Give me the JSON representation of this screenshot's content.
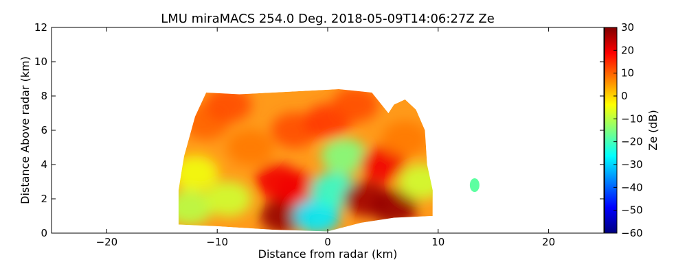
{
  "chart_data": {
    "type": "heatmap",
    "title": "LMU miraMACS 254.0 Deg. 2018-05-09T14:06:27Z  Ze",
    "xlabel": "Distance from radar (km)",
    "ylabel": "Distance Above radar  (km)",
    "xlim": [
      -25,
      25
    ],
    "ylim": [
      0,
      12
    ],
    "xticks": [
      -20,
      -10,
      0,
      10,
      20
    ],
    "xtick_labels": [
      "−20",
      "−10",
      "0",
      "10",
      "20"
    ],
    "yticks": [
      0,
      2,
      4,
      6,
      8,
      10,
      12
    ],
    "ytick_labels": [
      "0",
      "2",
      "4",
      "6",
      "8",
      "10",
      "12"
    ],
    "grid": false,
    "colorbar": {
      "label": "Ze (dB)",
      "range": [
        -60,
        30
      ],
      "ticks": [
        30,
        20,
        10,
        0,
        -10,
        -20,
        -30,
        -40,
        -50,
        -60
      ],
      "tick_labels": [
        "30",
        "20",
        "10",
        "0",
        "−10",
        "−20",
        "−30",
        "−40",
        "−50",
        "−60"
      ],
      "colormap": "jet",
      "colors": [
        "#00007f",
        "#0000ff",
        "#007fff",
        "#00ffff",
        "#7fff7f",
        "#ffff00",
        "#ff7f00",
        "#ff0000",
        "#7f0000"
      ]
    },
    "echo_region": {
      "outline": [
        [
          -13.5,
          0.5
        ],
        [
          -13.5,
          2.5
        ],
        [
          -13,
          4.5
        ],
        [
          -12,
          6.8
        ],
        [
          -11,
          8.2
        ],
        [
          -8,
          8.1
        ],
        [
          -5,
          8.2
        ],
        [
          -2,
          8.3
        ],
        [
          1,
          8.4
        ],
        [
          4,
          8.2
        ],
        [
          5.5,
          7.0
        ],
        [
          6,
          7.5
        ],
        [
          7,
          7.8
        ],
        [
          8,
          7.2
        ],
        [
          8.8,
          6.0
        ],
        [
          9,
          4.0
        ],
        [
          9.5,
          2.5
        ],
        [
          9.5,
          1.0
        ],
        [
          6,
          0.9
        ],
        [
          3,
          0.6
        ],
        [
          0,
          0.1
        ],
        [
          -5,
          0.2
        ],
        [
          -10,
          0.4
        ]
      ],
      "values": [
        {
          "x": -12.5,
          "y": 1.5,
          "ze": -10
        },
        {
          "x": -12.0,
          "y": 3.5,
          "ze": -5
        },
        {
          "x": -11.0,
          "y": 6.5,
          "ze": 10
        },
        {
          "x": -9.0,
          "y": 7.5,
          "ze": 12
        },
        {
          "x": -7.0,
          "y": 5.0,
          "ze": 8
        },
        {
          "x": -9.0,
          "y": 2.0,
          "ze": -8
        },
        {
          "x": -4.0,
          "y": 1.0,
          "ze": 28
        },
        {
          "x": -4.5,
          "y": 3.0,
          "ze": 20
        },
        {
          "x": -2.5,
          "y": 2.5,
          "ze": 20
        },
        {
          "x": -1.0,
          "y": 1.0,
          "ze": -28
        },
        {
          "x": 0.5,
          "y": 2.5,
          "ze": -22
        },
        {
          "x": 1.5,
          "y": 4.5,
          "ze": -15
        },
        {
          "x": -3.0,
          "y": 6.0,
          "ze": 12
        },
        {
          "x": 0.0,
          "y": 6.5,
          "ze": 14
        },
        {
          "x": 2.5,
          "y": 7.5,
          "ze": 12
        },
        {
          "x": 3.5,
          "y": 2.0,
          "ze": 27
        },
        {
          "x": 5.0,
          "y": 4.0,
          "ze": 20
        },
        {
          "x": 6.0,
          "y": 1.5,
          "ze": 28
        },
        {
          "x": 7.0,
          "y": 5.5,
          "ze": 8
        },
        {
          "x": 8.5,
          "y": 3.0,
          "ze": -8
        },
        {
          "x": 13.3,
          "y": 2.8,
          "ze": -18
        }
      ]
    }
  }
}
